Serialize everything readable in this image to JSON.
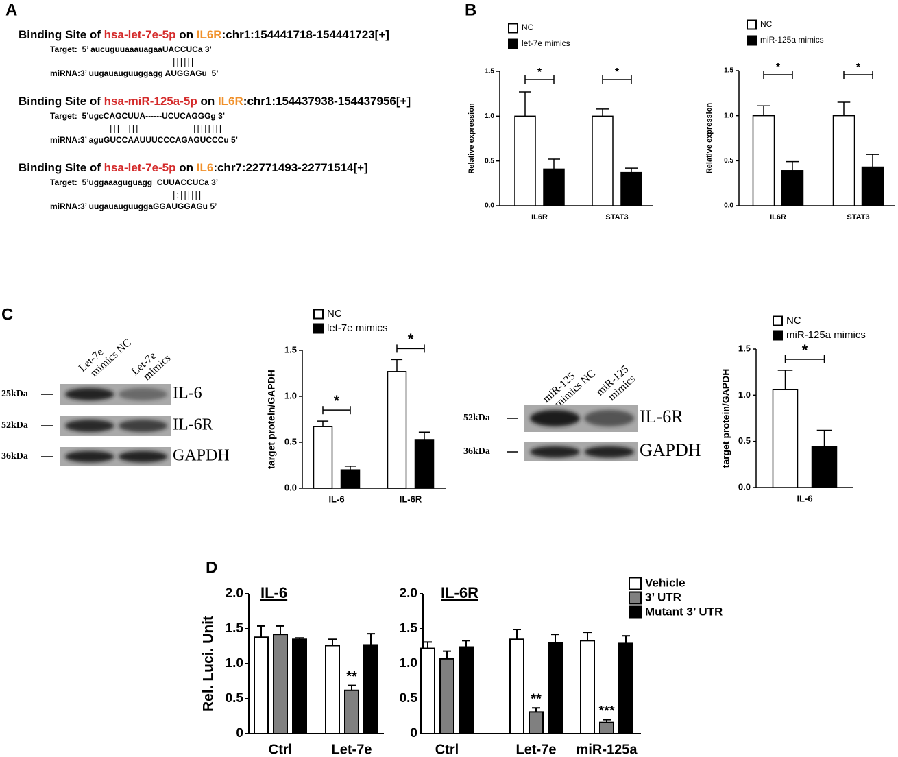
{
  "panel_labels": [
    "A",
    "B",
    "C",
    "D"
  ],
  "panel_a": {
    "sites": [
      {
        "prefix": "Binding Site of ",
        "mirna": "hsa-let-7e-5p",
        "on": " on ",
        "gene": "IL6R",
        "locus": ":chr1:154441718-154441723[+]",
        "target": "Target:  5’ aucuguuaaauagaaUACCUCa 3’",
        "pairs": "||||||",
        "mirna_seq": "miRNA:3’ uugauauguuggagg AUGGAGu  5’"
      },
      {
        "prefix": "Binding Site of ",
        "mirna": "hsa-miR-125a-5p",
        "on": " on ",
        "gene": "IL6R",
        "locus": ":chr1:154437938-154437956[+]",
        "target": "Target:  5’ugcCAGCUUA------UCUCAGGGg 3’",
        "pairs": "|||  |||              ||||||||",
        "mirna_seq": "miRNA:3’ aguGUCCAAUUUCCCAGAGUCCCu 5’"
      },
      {
        "prefix": "Binding Site of ",
        "mirna": "hsa-let-7e-5p",
        "on": " on ",
        "gene": "IL6",
        "locus": ":chr7:22771493-22771514[+]",
        "target": "Target:  5’uggaaaguguagg  CUUACCUCa 3’",
        "pairs": "|:||||||",
        "mirna_seq": "miRNA:3’ uugauauguuggaGGAUGGAGu 5’"
      }
    ]
  },
  "blots": [
    {
      "lanes": [
        [
          "Let-7e",
          "mimics NC"
        ],
        [
          "Let-7e",
          "mimics"
        ]
      ],
      "rows": [
        {
          "size": "25kDa",
          "protein": "IL-6"
        },
        {
          "size": "52kDa",
          "protein": "IL-6R"
        },
        {
          "size": "36kDa",
          "protein": "GAPDH"
        }
      ]
    },
    {
      "lanes": [
        [
          "miR-125",
          "mimics NC"
        ],
        [
          "miR-125",
          "mimics"
        ]
      ],
      "rows": [
        {
          "size": "52kDa",
          "protein": "IL-6R"
        },
        {
          "size": "36kDa",
          "protein": "GAPDH"
        }
      ]
    }
  ],
  "chart_data": [
    {
      "type": "bar",
      "y_label": "Relative expression",
      "categories": [
        "IL6R",
        "STAT3"
      ],
      "series": [
        {
          "name": "NC",
          "color": "#ffffff",
          "values": [
            1.0,
            1.0
          ],
          "errors": [
            0.27,
            0.08
          ]
        },
        {
          "name": "let-7e mimics",
          "color": "#000000",
          "values": [
            0.41,
            0.37
          ],
          "errors": [
            0.11,
            0.05
          ]
        }
      ],
      "ylim": [
        0,
        1.5
      ],
      "yticks": [
        {
          "value": 0,
          "label": "0.0"
        },
        0.5,
        {
          "value": 1,
          "label": "1.0"
        },
        1.5
      ],
      "significance": [
        "*",
        "*"
      ]
    },
    {
      "type": "bar",
      "y_label": "Relative expression",
      "categories": [
        "IL6R",
        "STAT3"
      ],
      "series": [
        {
          "name": "NC",
          "color": "#ffffff",
          "values": [
            1.0,
            1.0
          ],
          "errors": [
            0.11,
            0.15
          ]
        },
        {
          "name": "miR-125a mimics",
          "color": "#000000",
          "values": [
            0.39,
            0.43
          ],
          "errors": [
            0.1,
            0.14
          ]
        }
      ],
      "ylim": [
        0,
        1.5
      ],
      "yticks": [
        {
          "value": 0,
          "label": "0.0"
        },
        0.5,
        {
          "value": 1,
          "label": "1.0"
        },
        1.5
      ],
      "significance": [
        "*",
        "*"
      ]
    },
    {
      "type": "bar",
      "y_label": "target protein/GAPDH",
      "categories": [
        "IL-6",
        "IL-6R"
      ],
      "series": [
        {
          "name": "NC",
          "color": "#ffffff",
          "values": [
            0.67,
            1.27
          ],
          "errors": [
            0.06,
            0.13
          ]
        },
        {
          "name": "let-7e mimics",
          "color": "#000000",
          "values": [
            0.2,
            0.53
          ],
          "errors": [
            0.04,
            0.08
          ]
        }
      ],
      "ylim": [
        0,
        1.5
      ],
      "yticks": [
        {
          "value": 0,
          "label": "0.0"
        },
        0.5,
        {
          "value": 1,
          "label": "1.0"
        },
        1.5
      ],
      "significance": [
        "*",
        "*"
      ]
    },
    {
      "type": "bar",
      "y_label": "target protein/GAPDH",
      "categories": [
        "IL-6"
      ],
      "series": [
        {
          "name": "NC",
          "color": "#ffffff",
          "values": [
            1.06
          ],
          "errors": [
            0.21
          ]
        },
        {
          "name": "miR-125a mimics",
          "color": "#000000",
          "values": [
            0.44
          ],
          "errors": [
            0.18
          ]
        }
      ],
      "ylim": [
        0,
        1.5
      ],
      "yticks": [
        {
          "value": 0,
          "label": "0.0"
        },
        0.5,
        {
          "value": 1,
          "label": "1.0"
        },
        1.5
      ],
      "significance": [
        "*"
      ]
    },
    {
      "type": "bar",
      "title": "IL-6",
      "y_label": "Rel. Luci. Unit",
      "categories": [
        "Ctrl",
        "Let-7e"
      ],
      "series": [
        {
          "color": "#ffffff",
          "values": [
            1.38,
            1.26
          ],
          "errors": [
            0.16,
            0.09
          ]
        },
        {
          "color": "#808080",
          "values": [
            1.42,
            0.62
          ],
          "errors": [
            0.12,
            0.07
          ],
          "significance": [
            null,
            "**"
          ]
        },
        {
          "color": "#000000",
          "values": [
            1.35,
            1.27
          ],
          "errors": [
            0.02,
            0.16
          ]
        }
      ],
      "ylim": [
        0,
        2
      ],
      "yticks": [
        0,
        0.5,
        {
          "value": 1,
          "label": "1.0"
        },
        1.5,
        {
          "value": 2,
          "label": "2.0"
        }
      ]
    },
    {
      "type": "bar",
      "title": "IL-6R",
      "categories": [
        "Ctrl",
        "Let-7e",
        "miR-125a"
      ],
      "series": [
        {
          "name": "Vehicle",
          "color": "#ffffff",
          "values": [
            1.22,
            1.35,
            1.33
          ],
          "errors": [
            0.09,
            0.14,
            0.12
          ]
        },
        {
          "name": "3’ UTR",
          "color": "#808080",
          "values": [
            1.07,
            0.31,
            0.16
          ],
          "errors": [
            0.11,
            0.06,
            0.04
          ],
          "significance": [
            null,
            "**",
            "***"
          ]
        },
        {
          "name": "Mutant 3’ UTR",
          "color": "#000000",
          "values": [
            1.24,
            1.3,
            1.29
          ],
          "errors": [
            0.09,
            0.12,
            0.11
          ]
        }
      ],
      "ylim": [
        0,
        2
      ],
      "yticks": [
        0,
        0.5,
        {
          "value": 1,
          "label": "1.0"
        },
        1.5,
        {
          "value": 2,
          "label": "2.0"
        }
      ]
    }
  ]
}
